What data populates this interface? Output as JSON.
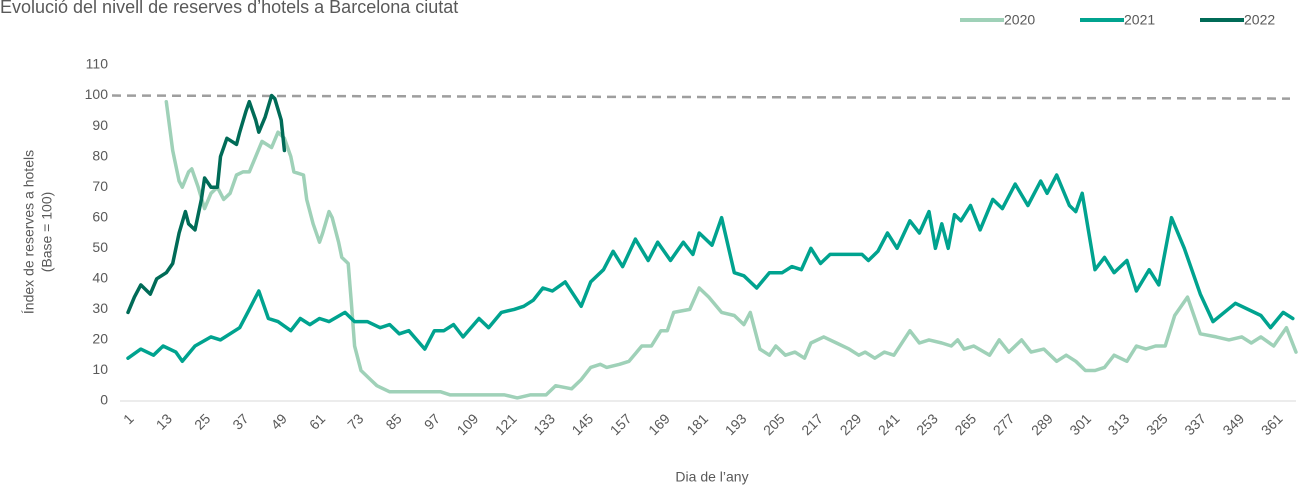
{
  "chart_data": {
    "type": "line",
    "title": "Evolució del nivell de reserves d’hotels a Barcelona ciutat",
    "xlabel": "Dia de l’any",
    "ylabel": [
      "Índex de reserves a hotels",
      "(Base = 100)"
    ],
    "xlim": [
      1,
      367
    ],
    "xticks": [
      1,
      13,
      25,
      37,
      49,
      61,
      73,
      85,
      97,
      109,
      121,
      133,
      145,
      157,
      169,
      181,
      193,
      205,
      217,
      229,
      241,
      253,
      265,
      277,
      289,
      301,
      313,
      325,
      337,
      349,
      361
    ],
    "ylim": [
      0,
      110
    ],
    "yticks": [
      0,
      10,
      20,
      30,
      40,
      50,
      60,
      70,
      80,
      90,
      100,
      110
    ],
    "grid": false,
    "legend": "top-right",
    "reference_line": {
      "values": [
        100,
        99
      ],
      "color": "#9e9e9e",
      "dashed": true
    },
    "series": [
      {
        "name": "2020",
        "color": "#9fd1b8",
        "x": [
          13,
          15,
          17,
          18,
          20,
          21,
          23,
          25,
          27,
          29,
          31,
          33,
          35,
          37,
          39,
          41,
          43,
          46,
          48,
          50,
          52,
          53,
          56,
          57,
          59,
          61,
          62,
          64,
          65,
          67,
          68,
          70,
          71,
          72,
          74,
          77,
          79,
          83,
          89,
          96,
          99,
          102,
          108,
          111,
          116,
          119,
          123,
          127,
          132,
          135,
          140,
          143,
          146,
          149,
          151,
          155,
          158,
          162,
          165,
          168,
          170,
          172,
          177,
          180,
          183,
          187,
          191,
          194,
          196,
          199,
          202,
          204,
          207,
          210,
          213,
          215,
          219,
          223,
          227,
          230,
          232,
          235,
          238,
          241,
          246,
          249,
          252,
          256,
          259,
          261,
          263,
          266,
          271,
          274,
          277,
          281,
          284,
          288,
          292,
          295,
          298,
          301,
          304,
          307,
          310,
          314,
          317,
          320,
          323,
          326,
          329,
          333,
          337,
          342,
          346,
          350,
          353,
          356,
          360,
          364,
          367
        ],
        "values": [
          98,
          82,
          72,
          70,
          75,
          76,
          70,
          63,
          68,
          70,
          66,
          68,
          74,
          75,
          75,
          80,
          85,
          83,
          88,
          86,
          80,
          75,
          74,
          66,
          58,
          52,
          55,
          62,
          60,
          52,
          47,
          45,
          32,
          18,
          10,
          7,
          5,
          3,
          3,
          3,
          3,
          2,
          2,
          2,
          2,
          2,
          1,
          2,
          2,
          5,
          4,
          7,
          11,
          12,
          11,
          12,
          13,
          18,
          18,
          23,
          23,
          29,
          30,
          37,
          34,
          29,
          28,
          25,
          29,
          17,
          15,
          18,
          15,
          16,
          14,
          19,
          21,
          19,
          17,
          15,
          16,
          14,
          16,
          15,
          23,
          19,
          20,
          19,
          18,
          20,
          17,
          18,
          15,
          20,
          16,
          20,
          16,
          17,
          13,
          15,
          13,
          10,
          10,
          11,
          15,
          13,
          18,
          17,
          18,
          18,
          28,
          34,
          22,
          21,
          20,
          21,
          19,
          21,
          18,
          24,
          16
        ]
      },
      {
        "name": "2021",
        "color": "#00a38f",
        "x": [
          1,
          5,
          9,
          12,
          16,
          18,
          22,
          27,
          30,
          36,
          39,
          42,
          45,
          48,
          52,
          55,
          58,
          61,
          64,
          69,
          72,
          76,
          80,
          83,
          86,
          89,
          94,
          97,
          100,
          103,
          106,
          111,
          114,
          118,
          122,
          125,
          128,
          131,
          134,
          138,
          143,
          146,
          150,
          153,
          156,
          160,
          164,
          167,
          171,
          175,
          178,
          180,
          184,
          187,
          191,
          194,
          198,
          202,
          206,
          209,
          212,
          215,
          218,
          221,
          231,
          233,
          236,
          239,
          242,
          246,
          249,
          252,
          254,
          256,
          258,
          260,
          262,
          265,
          268,
          272,
          275,
          279,
          283,
          287,
          289,
          292,
          296,
          298,
          300,
          304,
          307,
          310,
          314,
          317,
          321,
          324,
          328,
          332,
          337,
          341,
          348,
          356,
          359,
          363,
          366
        ],
        "values": [
          14,
          17,
          15,
          18,
          16,
          13,
          18,
          21,
          20,
          24,
          30,
          36,
          27,
          26,
          23,
          27,
          25,
          27,
          26,
          29,
          26,
          26,
          24,
          25,
          22,
          23,
          17,
          23,
          23,
          25,
          21,
          27,
          24,
          29,
          30,
          31,
          33,
          37,
          36,
          39,
          31,
          39,
          43,
          49,
          44,
          53,
          46,
          52,
          46,
          52,
          48,
          55,
          51,
          60,
          42,
          41,
          37,
          42,
          42,
          44,
          43,
          50,
          45,
          48,
          48,
          46,
          49,
          55,
          50,
          59,
          55,
          62,
          50,
          58,
          50,
          61,
          59,
          64,
          56,
          66,
          63,
          71,
          64,
          72,
          68,
          74,
          64,
          62,
          68,
          43,
          47,
          42,
          46,
          36,
          43,
          38,
          60,
          50,
          35,
          26,
          32,
          28,
          24,
          29,
          27
        ]
      },
      {
        "name": "2022",
        "color": "#006b57",
        "x": [
          1,
          3,
          5,
          7,
          8,
          10,
          13,
          15,
          17,
          19,
          20,
          22,
          24,
          25,
          27,
          29,
          30,
          32,
          35,
          36,
          38,
          39,
          41,
          42,
          44,
          46,
          47,
          49,
          50
        ],
        "values": [
          29,
          34,
          38,
          36,
          35,
          40,
          42,
          45,
          55,
          62,
          58,
          56,
          66,
          73,
          70,
          70,
          80,
          86,
          84,
          88,
          95,
          98,
          92,
          88,
          93,
          100,
          99,
          92,
          82
        ]
      }
    ]
  }
}
